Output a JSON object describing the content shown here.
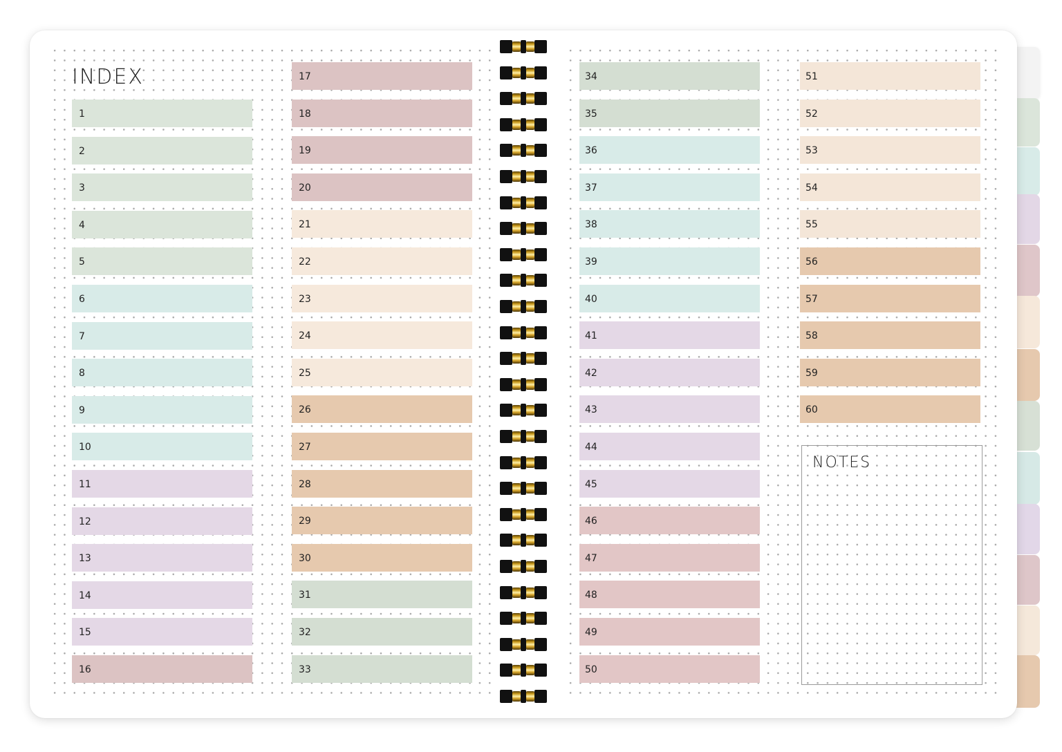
{
  "index_title": "INDEX",
  "notes_title": "NOTES",
  "colors": {
    "sage": "#dbe5da",
    "mint": "#d8ebe8",
    "lavender": "#e4d8e6",
    "rose": "#dcc3c3",
    "cream": "#f6e9dc",
    "tan": "#e6c9ae",
    "sage2": "#d4ded2",
    "rose2": "#e2c6c6",
    "cream2": "#f4e6d8",
    "gold": "#d4a52a"
  },
  "side_tabs": [
    {
      "color": "#f3f3f3"
    },
    {
      "color": "#dbe5da"
    },
    {
      "color": "#d8ebe8"
    },
    {
      "color": "#e3d7e6"
    },
    {
      "color": "#dfc6c9"
    },
    {
      "color": "#f6e8da"
    },
    {
      "color": "#e6c9ae"
    },
    {
      "color": "#d7e0d5"
    },
    {
      "color": "#d6e9e6"
    },
    {
      "color": "#e2d7e8"
    },
    {
      "color": "#dec6c9"
    },
    {
      "color": "#f5e8da"
    },
    {
      "color": "#e6c9ae"
    }
  ],
  "columns": [
    {
      "items": [
        {
          "label": "1",
          "color": "sage"
        },
        {
          "label": "2",
          "color": "sage"
        },
        {
          "label": "3",
          "color": "sage"
        },
        {
          "label": "4",
          "color": "sage"
        },
        {
          "label": "5",
          "color": "sage"
        },
        {
          "label": "6",
          "color": "mint"
        },
        {
          "label": "7",
          "color": "mint"
        },
        {
          "label": "8",
          "color": "mint"
        },
        {
          "label": "9",
          "color": "mint"
        },
        {
          "label": "10",
          "color": "mint"
        },
        {
          "label": "11",
          "color": "lavender"
        },
        {
          "label": "12",
          "color": "lavender"
        },
        {
          "label": "13",
          "color": "lavender"
        },
        {
          "label": "14",
          "color": "lavender"
        },
        {
          "label": "15",
          "color": "lavender"
        },
        {
          "label": "16",
          "color": "rose"
        }
      ]
    },
    {
      "items": [
        {
          "label": "17",
          "color": "rose"
        },
        {
          "label": "18",
          "color": "rose"
        },
        {
          "label": "19",
          "color": "rose"
        },
        {
          "label": "20",
          "color": "rose"
        },
        {
          "label": "21",
          "color": "cream"
        },
        {
          "label": "22",
          "color": "cream"
        },
        {
          "label": "23",
          "color": "cream"
        },
        {
          "label": "24",
          "color": "cream"
        },
        {
          "label": "25",
          "color": "cream"
        },
        {
          "label": "26",
          "color": "tan"
        },
        {
          "label": "27",
          "color": "tan"
        },
        {
          "label": "28",
          "color": "tan"
        },
        {
          "label": "29",
          "color": "tan"
        },
        {
          "label": "30",
          "color": "tan"
        },
        {
          "label": "31",
          "color": "sage2"
        },
        {
          "label": "32",
          "color": "sage2"
        },
        {
          "label": "33",
          "color": "sage2"
        }
      ]
    },
    {
      "items": [
        {
          "label": "34",
          "color": "sage2"
        },
        {
          "label": "35",
          "color": "sage2"
        },
        {
          "label": "36",
          "color": "mint"
        },
        {
          "label": "37",
          "color": "mint"
        },
        {
          "label": "38",
          "color": "mint"
        },
        {
          "label": "39",
          "color": "mint"
        },
        {
          "label": "40",
          "color": "mint"
        },
        {
          "label": "41",
          "color": "lavender"
        },
        {
          "label": "42",
          "color": "lavender"
        },
        {
          "label": "43",
          "color": "lavender"
        },
        {
          "label": "44",
          "color": "lavender"
        },
        {
          "label": "45",
          "color": "lavender"
        },
        {
          "label": "46",
          "color": "rose2"
        },
        {
          "label": "47",
          "color": "rose2"
        },
        {
          "label": "48",
          "color": "rose2"
        },
        {
          "label": "49",
          "color": "rose2"
        },
        {
          "label": "50",
          "color": "rose2"
        }
      ]
    },
    {
      "items": [
        {
          "label": "51",
          "color": "cream2"
        },
        {
          "label": "52",
          "color": "cream2"
        },
        {
          "label": "53",
          "color": "cream2"
        },
        {
          "label": "54",
          "color": "cream2"
        },
        {
          "label": "55",
          "color": "cream2"
        },
        {
          "label": "56",
          "color": "tan"
        },
        {
          "label": "57",
          "color": "tan"
        },
        {
          "label": "58",
          "color": "tan"
        },
        {
          "label": "59",
          "color": "tan"
        },
        {
          "label": "60",
          "color": "tan"
        }
      ]
    }
  ]
}
